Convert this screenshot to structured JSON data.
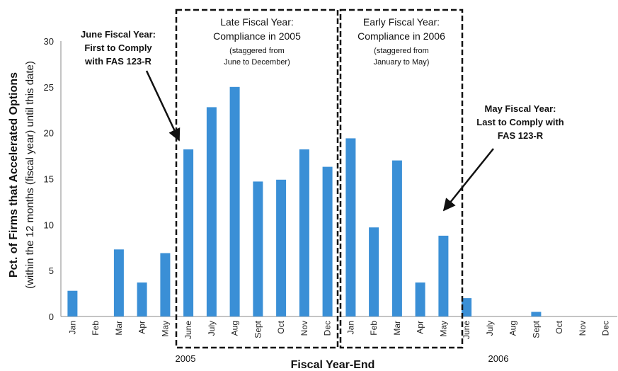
{
  "chart_data": {
    "type": "bar",
    "ylabel": "Pct. of Firms that Accelerated Options",
    "ylabel_sub": "(within the 12 months (fiscal year) until this date)",
    "xlabel": "Fiscal Year-End",
    "ylim": [
      0,
      30
    ],
    "yticks": [
      "0",
      "5",
      "10",
      "15",
      "20",
      "25",
      "30"
    ],
    "categories": [
      "Jan",
      "Feb",
      "Mar",
      "Apr",
      "May",
      "June",
      "July",
      "Aug",
      "Sept",
      "Oct",
      "Nov",
      "Dec",
      "Jan",
      "Feb",
      "Mar",
      "Apr",
      "May",
      "June",
      "July",
      "Aug",
      "Sept",
      "Oct",
      "Nov",
      "Dec"
    ],
    "values": [
      2.8,
      0,
      7.3,
      3.7,
      6.9,
      18.2,
      22.8,
      25.0,
      14.7,
      14.9,
      18.2,
      16.3,
      19.4,
      9.7,
      17.0,
      3.7,
      8.8,
      2.0,
      0,
      0,
      0.5,
      0,
      0,
      0
    ],
    "bar_color": "#3a8fd6",
    "grid": false,
    "year_labels": [
      "2005",
      "2006"
    ],
    "boxes": [
      {
        "title_line1": "Late Fiscal Year:",
        "title_line2": "Compliance in 2005",
        "note_line1": "(staggered from",
        "note_line2": "June to December)"
      },
      {
        "title_line1": "Early Fiscal Year:",
        "title_line2": "Compliance in 2006",
        "note_line1": "(staggered from",
        "note_line2": "January to May)"
      }
    ],
    "annotations": [
      {
        "line1": "June Fiscal Year:",
        "line2": "First to Comply",
        "line3": "with FAS 123-R"
      },
      {
        "line1": "May Fiscal Year:",
        "line2": "Last to Comply with",
        "line3": "FAS 123-R"
      }
    ]
  }
}
